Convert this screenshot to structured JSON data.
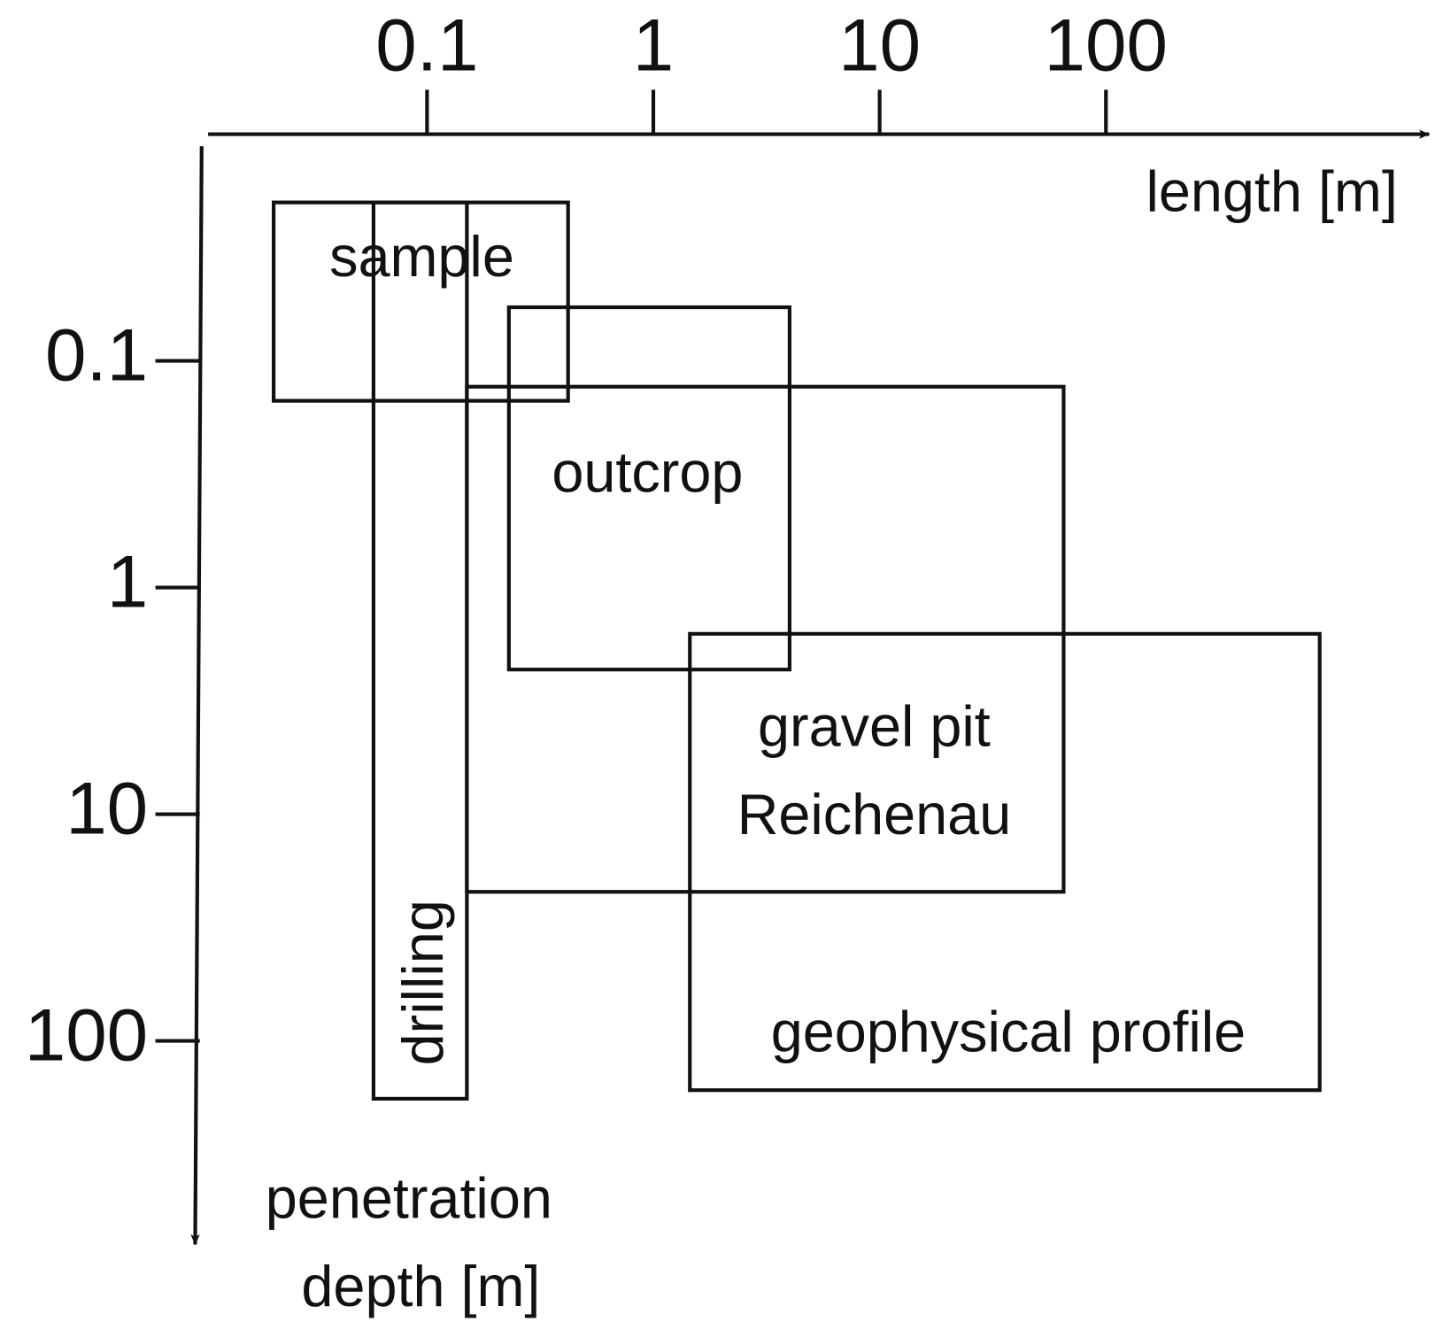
{
  "chart_data": {
    "type": "range-box",
    "x_label": "length [m]",
    "y_label": [
      "penetration",
      "depth [m]"
    ],
    "xscale": "log",
    "yscale": "log",
    "xlim": [
      0.01,
      3000
    ],
    "ylim": [
      0.01,
      1000
    ],
    "xticks": [
      0.1,
      1,
      10,
      100
    ],
    "yticks": [
      0.1,
      1,
      10,
      100
    ],
    "color": "#111111",
    "boxes": [
      {
        "label": [
          "sample"
        ],
        "x": [
          0.021,
          0.42
        ],
        "y": [
          0.02,
          0.15
        ]
      },
      {
        "label": [
          "drilling"
        ],
        "x": [
          0.058,
          0.15
        ],
        "y": [
          0.02,
          180
        ]
      },
      {
        "label": [
          "outcrop"
        ],
        "x": [
          0.23,
          4
        ],
        "y": [
          0.058,
          2.3
        ]
      },
      {
        "label": [
          "gravel pit",
          "Reichenau"
        ],
        "x": [
          0.15,
          65
        ],
        "y": [
          0.13,
          22
        ]
      },
      {
        "label": [
          "geophysical profile"
        ],
        "x": [
          1.45,
          880
        ],
        "y": [
          1.6,
          165
        ]
      }
    ]
  }
}
